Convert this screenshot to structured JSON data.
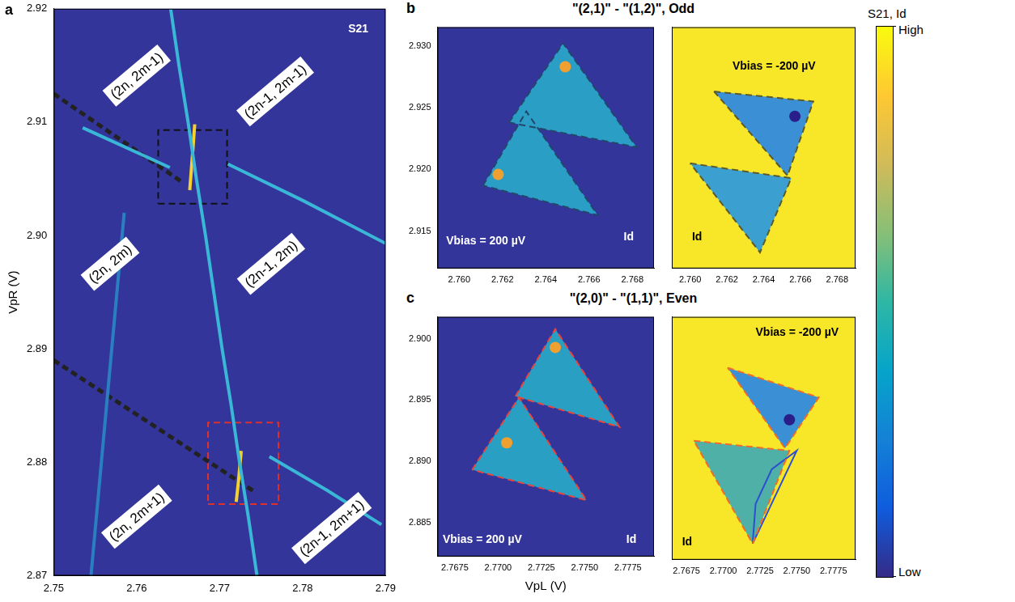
{
  "chart_data": [
    {
      "type": "scatter",
      "panel": "a",
      "y_label": "VpR (V)",
      "background": "#33359a",
      "xlim": [
        2.75,
        2.79
      ],
      "xticks": [
        2.75,
        2.76,
        2.77,
        2.78,
        2.79
      ],
      "ylim": [
        2.87,
        2.92
      ],
      "yticks": [
        2.87,
        2.88,
        2.89,
        {
          "value": 2.9,
          "label": "2.90"
        },
        2.91,
        2.92
      ],
      "tick_labels": true,
      "grid": false,
      "series": [
        {
          "type": "line",
          "color": "#3ab7d6",
          "line_style": "solid",
          "x": [
            2.7641,
            2.7651,
            2.7662,
            2.7672,
            2.7683,
            2.7693,
            2.7703,
            2.7714,
            2.7724,
            2.7735,
            2.7745
          ],
          "values": [
            2.92,
            2.915,
            2.91,
            2.905,
            2.9,
            2.895,
            2.89,
            2.885,
            2.88,
            2.875,
            2.87
          ]
        },
        {
          "type": "line",
          "color": "#3ab7d6",
          "line_style": "solid",
          "x": [
            2.771,
            2.78,
            2.79
          ],
          "values": [
            2.9063,
            2.9031,
            2.8993
          ]
        },
        {
          "type": "line",
          "color": "#3ab7d6",
          "line_style": "solid",
          "x": [
            2.7535,
            2.764
          ],
          "values": [
            2.9095,
            2.906
          ]
        },
        {
          "type": "line",
          "color": "#3ab7d6",
          "line_style": "solid",
          "x": [
            2.776,
            2.783,
            2.7895
          ],
          "values": [
            2.8805,
            2.8775,
            2.8745
          ]
        },
        {
          "type": "line",
          "color": "#2a7fc0",
          "line_style": "solid",
          "x": [
            2.7585,
            2.7545
          ],
          "values": [
            2.902,
            2.87
          ]
        },
        {
          "type": "line",
          "color": "#f5d12e",
          "line_style": "solid",
          "x": [
            2.7664,
            2.7667,
            2.767
          ],
          "values": [
            2.904,
            2.9068,
            2.9098
          ]
        },
        {
          "type": "line",
          "color": "#f5d12e",
          "line_style": "solid",
          "x": [
            2.772,
            2.7723,
            2.7726
          ],
          "values": [
            2.8765,
            2.8785,
            2.881
          ]
        },
        {
          "type": "line",
          "color": "#222222",
          "line_style": "dashed",
          "x": [
            2.75,
            2.7655
          ],
          "values": [
            2.9125,
            2.9047
          ]
        },
        {
          "type": "line",
          "color": "#222222",
          "line_style": "dashed",
          "x": [
            2.75,
            2.774
          ],
          "values": [
            2.889,
            2.8775
          ]
        },
        {
          "type": "line",
          "color": "#111111",
          "line_style": "dashed",
          "x": [
            2.7626,
            2.7709,
            2.7709,
            2.7626,
            2.7626
          ],
          "values": [
            2.9028,
            2.9028,
            2.9093,
            2.9093,
            2.9028
          ]
        },
        {
          "type": "line",
          "color": "#e0302a",
          "line_style": "dashed",
          "x": [
            2.7686,
            2.7771,
            2.7771,
            2.7686,
            2.7686
          ],
          "values": [
            2.8763,
            2.8763,
            2.8835,
            2.8835,
            2.8763
          ]
        }
      ],
      "labels": [
        {
          "text": "(2n, 2m-1)",
          "x": 2.76,
          "y": 2.9141
        },
        {
          "text": "(2n-1, 2m-1)",
          "x": 2.7767,
          "y": 2.9127
        },
        {
          "text": "(2n, 2m)",
          "x": 2.7568,
          "y": 2.8975
        },
        {
          "text": "(2n-1, 2m)",
          "x": 2.7762,
          "y": 2.8975
        },
        {
          "text": "(2n, 2m+1)",
          "x": 2.76,
          "y": 2.8752
        },
        {
          "text": "(2n-1, 2m+1)",
          "x": 2.7835,
          "y": 2.8742
        }
      ],
      "annotations": [
        {
          "text": "S21",
          "x": 2.7855,
          "y": 2.9182
        }
      ]
    },
    {
      "type": "scatter",
      "panel": "b",
      "title": "\"(2,1)\" - \"(1,2)\", Odd",
      "background": "#33359a",
      "xlim": [
        2.759,
        2.769
      ],
      "xticks": [
        {
          "value": 2.76,
          "label": "2.760"
        },
        2.762,
        2.764,
        2.766,
        2.768
      ],
      "ylim": [
        2.912,
        2.9315
      ],
      "yticks": [
        2.915,
        {
          "value": 2.92,
          "label": "2.920"
        },
        2.925,
        {
          "value": 2.93,
          "label": "2.930"
        }
      ],
      "tick_labels": true,
      "grid": false,
      "series": [
        {
          "type": "area",
          "color": "#2b9ec6",
          "x": [
            2.7623,
            2.7648,
            2.7682
          ],
          "values": [
            2.9238,
            2.9302,
            2.9218
          ]
        },
        {
          "type": "area",
          "color": "#2b9ec6",
          "x": [
            2.7611,
            2.7631,
            2.7664
          ],
          "values": [
            2.9187,
            2.9247,
            2.9163
          ]
        },
        {
          "type": "scatter",
          "color": "#f0a030",
          "marker": "circle",
          "x": [
            2.7649,
            2.7618
          ],
          "values": [
            2.9283,
            2.9196
          ]
        },
        {
          "type": "line",
          "color": "#23466b",
          "line_style": "dashed",
          "x": [
            2.7623,
            2.7648,
            2.7682,
            2.7623
          ],
          "values": [
            2.9238,
            2.9302,
            2.9218,
            2.9238
          ]
        },
        {
          "type": "line",
          "color": "#23466b",
          "line_style": "dashed",
          "x": [
            2.7611,
            2.7631,
            2.7664,
            2.7611
          ],
          "values": [
            2.9187,
            2.9247,
            2.9163,
            2.9187
          ]
        }
      ],
      "annotations": [
        {
          "text": "Vbias = 200 µV",
          "x": 2.7594,
          "y": 2.9142
        },
        {
          "text": "Id",
          "x": 2.7676,
          "y": 2.9145
        }
      ]
    },
    {
      "type": "scatter",
      "background": "#f8e629",
      "xlim": [
        2.759,
        2.769
      ],
      "xticks": [
        {
          "value": 2.76,
          "label": "2.760"
        },
        2.762,
        2.764,
        2.766,
        2.768
      ],
      "ylim": [
        2.912,
        2.9315
      ],
      "yticks": [
        2.915,
        {
          "value": 2.92,
          "label": "2.920"
        },
        2.925,
        {
          "value": 2.93,
          "label": "2.930"
        }
      ],
      "tick_labels": "x",
      "grid": false,
      "series": [
        {
          "type": "area",
          "color": "#3b8fd4",
          "x": [
            2.7613,
            2.7667,
            2.7653
          ],
          "values": [
            2.9263,
            2.9255,
            2.9195
          ]
        },
        {
          "type": "area",
          "color": "#3b9fd0",
          "x": [
            2.76,
            2.7655,
            2.7638
          ],
          "values": [
            2.9205,
            2.9193,
            2.9133
          ]
        },
        {
          "type": "scatter",
          "color": "#2a1f8a",
          "marker": "circle",
          "x": [
            2.7657
          ],
          "values": [
            2.9243
          ]
        },
        {
          "type": "line",
          "color": "#5b5a2c",
          "line_style": "dashed",
          "x": [
            2.7613,
            2.7667,
            2.7653,
            2.7613
          ],
          "values": [
            2.9263,
            2.9255,
            2.9195,
            2.9263
          ]
        },
        {
          "type": "line",
          "color": "#5b5a2c",
          "line_style": "dashed",
          "x": [
            2.76,
            2.7655,
            2.7638,
            2.76
          ],
          "values": [
            2.9205,
            2.9193,
            2.9133,
            2.9205
          ]
        }
      ],
      "annotations": [
        {
          "text": "Vbias = -200 µV",
          "x": 2.7623,
          "y": 2.9283
        },
        {
          "text": "Id",
          "x": 2.7601,
          "y": 2.9145
        }
      ]
    },
    {
      "type": "scatter",
      "panel": "c",
      "title": "\"(2,0)\" - \"(1,1)\", Even",
      "x_label": "VpL (V)",
      "background": "#33359a",
      "xlim": [
        2.7665,
        2.779
      ],
      "xticks": [
        2.7675,
        {
          "value": 2.77,
          "label": "2.7700"
        },
        2.7725,
        {
          "value": 2.775,
          "label": "2.7750"
        },
        2.7775
      ],
      "ylim": [
        2.8822,
        2.9018
      ],
      "yticks": [
        2.885,
        {
          "value": 2.89,
          "label": "2.890"
        },
        2.895,
        {
          "value": 2.9,
          "label": "2.900"
        }
      ],
      "tick_labels": true,
      "grid": false,
      "series": [
        {
          "type": "area",
          "color": "#2a9fc4",
          "x": [
            2.771,
            2.7733,
            2.777
          ],
          "values": [
            2.8953,
            2.9008,
            2.8928
          ]
        },
        {
          "type": "area",
          "color": "#2a9fc4",
          "x": [
            2.7685,
            2.7712,
            2.7751
          ],
          "values": [
            2.8893,
            2.8952,
            2.8868
          ]
        },
        {
          "type": "scatter",
          "color": "#f0a030",
          "marker": "circle",
          "x": [
            2.7733,
            2.7705
          ],
          "values": [
            2.8993,
            2.8915
          ]
        },
        {
          "type": "line",
          "color": "#e8453c",
          "line_style": "dashed",
          "x": [
            2.771,
            2.7733,
            2.777,
            2.771
          ],
          "values": [
            2.8953,
            2.9008,
            2.8928,
            2.8953
          ]
        },
        {
          "type": "line",
          "color": "#e8453c",
          "line_style": "dashed",
          "x": [
            2.7685,
            2.7712,
            2.7751,
            2.7685
          ],
          "values": [
            2.8893,
            2.8952,
            2.8868,
            2.8893
          ]
        }
      ],
      "annotations": [
        {
          "text": "Vbias = 200 µV",
          "x": 2.7668,
          "y": 2.8836
        },
        {
          "text": "Id",
          "x": 2.7774,
          "y": 2.8836
        }
      ]
    },
    {
      "type": "scatter",
      "background": "#f8e629",
      "xlim": [
        2.7665,
        2.779
      ],
      "xticks": [
        2.7675,
        {
          "value": 2.77,
          "label": "2.7700"
        },
        2.7725,
        {
          "value": 2.775,
          "label": "2.7750"
        },
        2.7775
      ],
      "ylim": [
        2.8822,
        2.9018
      ],
      "yticks": [
        2.885,
        {
          "value": 2.89,
          "label": "2.890"
        },
        2.895,
        {
          "value": 2.9,
          "label": "2.900"
        }
      ],
      "tick_labels": "x",
      "grid": false,
      "series": [
        {
          "type": "area",
          "color": "#3b8fd4",
          "x": [
            2.7703,
            2.7765,
            2.7742
          ],
          "values": [
            2.8977,
            2.8953,
            2.8912
          ]
        },
        {
          "type": "area",
          "color": "#4fb0a8",
          "x": [
            2.768,
            2.7745,
            2.772
          ],
          "values": [
            2.8918,
            2.891,
            2.8835
          ]
        },
        {
          "type": "scatter",
          "color": "#2a1f8a",
          "marker": "circle",
          "x": [
            2.7745
          ],
          "values": [
            2.8935
          ]
        },
        {
          "type": "line",
          "color": "#f26b2a",
          "line_style": "dashed",
          "x": [
            2.7703,
            2.7765,
            2.7742,
            2.7703
          ],
          "values": [
            2.8977,
            2.8953,
            2.8912,
            2.8977
          ]
        },
        {
          "type": "line",
          "color": "#f26b2a",
          "line_style": "dashed",
          "x": [
            2.768,
            2.7745,
            2.772,
            2.768
          ],
          "values": [
            2.8918,
            2.891,
            2.8835,
            2.8918
          ]
        },
        {
          "type": "line",
          "color": "#2e4fd0",
          "line_style": "solid",
          "x": [
            2.772,
            2.7722,
            2.7733,
            2.775,
            2.772
          ],
          "values": [
            2.8835,
            2.8867,
            2.8895,
            2.891,
            2.8835
          ]
        }
      ],
      "annotations": [
        {
          "text": "Vbias = -200 µV",
          "x": 2.7722,
          "y": 2.9005
        },
        {
          "text": "Id",
          "x": 2.7672,
          "y": 2.8836
        }
      ]
    }
  ],
  "colorbar": {
    "title": "S21, Id",
    "colors": [
      "#352a87",
      "#0f5cdd",
      "#1481d6",
      "#06a4ca",
      "#2eb7a4",
      "#87bf77",
      "#d1bb59",
      "#fec832",
      "#f9fb0e"
    ],
    "range": [
      0,
      1
    ],
    "ticks": [
      {
        "value": 1,
        "label": "High"
      },
      {
        "value": 0,
        "label": "Low"
      }
    ]
  }
}
